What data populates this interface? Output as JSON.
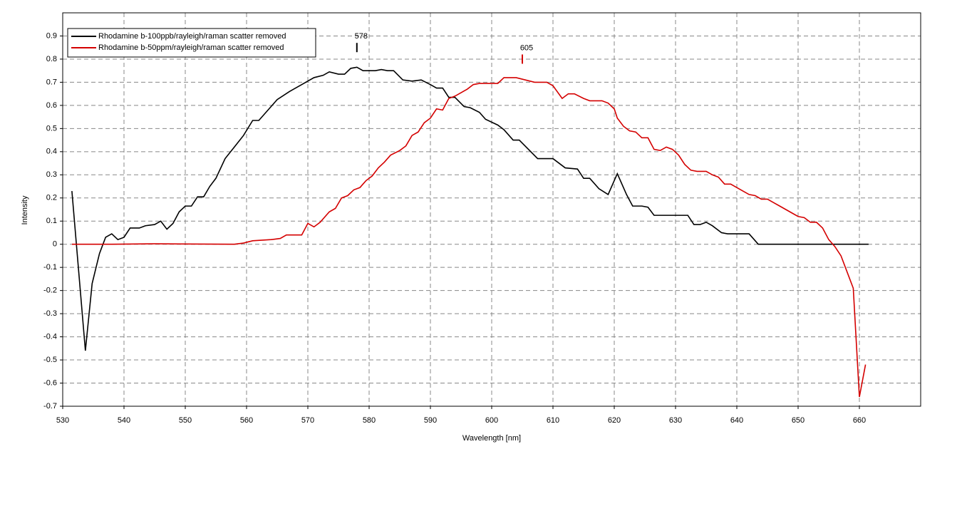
{
  "chart_data": {
    "type": "line",
    "xlabel": "Wavelength [nm]",
    "ylabel": "Intensity",
    "xlim": [
      530,
      670
    ],
    "ylim": [
      -0.7,
      1.0
    ],
    "xticks": [
      530,
      540,
      550,
      560,
      570,
      580,
      590,
      600,
      610,
      620,
      630,
      640,
      650,
      660
    ],
    "yticks": [
      -0.7,
      -0.6,
      -0.5,
      -0.4,
      -0.3,
      -0.2,
      -0.1,
      0,
      0.1,
      0.2,
      0.3,
      0.4,
      0.5,
      0.6,
      0.7,
      0.8,
      0.9
    ],
    "grid": true,
    "legend": "upper left",
    "series": [
      {
        "name": "Rhodamine b-100ppb/rayleigh/raman scatter removed",
        "color": "#000000",
        "x": [
          531.5,
          533.7,
          534.8,
          536,
          537,
          538,
          539,
          540,
          541,
          542.5,
          543.5,
          545,
          546,
          547,
          548,
          549,
          550,
          551,
          552,
          553,
          554,
          555,
          556.5,
          558,
          559.5,
          561,
          562,
          563.5,
          565,
          567,
          569,
          571,
          572.5,
          573.5,
          575,
          576,
          577,
          578,
          579,
          581,
          582,
          583,
          584,
          585.5,
          587,
          588.5,
          590,
          591,
          592,
          593,
          594,
          595.5,
          596.5,
          598,
          599,
          601,
          602,
          603.5,
          604.5,
          606,
          607.5,
          610,
          611,
          612,
          614,
          615,
          616,
          617.5,
          619,
          620.5,
          622,
          623,
          624.5,
          625.5,
          626.5,
          632,
          633,
          634,
          635,
          636,
          637.5,
          638.5,
          642,
          643.5,
          661.5
        ],
        "values": [
          0.23,
          -0.46,
          -0.17,
          -0.04,
          0.03,
          0.045,
          0.02,
          0.03,
          0.07,
          0.07,
          0.08,
          0.085,
          0.1,
          0.065,
          0.09,
          0.14,
          0.165,
          0.165,
          0.205,
          0.205,
          0.25,
          0.285,
          0.37,
          0.42,
          0.47,
          0.535,
          0.535,
          0.58,
          0.625,
          0.66,
          0.69,
          0.72,
          0.73,
          0.745,
          0.735,
          0.735,
          0.76,
          0.765,
          0.75,
          0.75,
          0.755,
          0.75,
          0.75,
          0.71,
          0.705,
          0.71,
          0.69,
          0.675,
          0.675,
          0.635,
          0.635,
          0.595,
          0.59,
          0.57,
          0.54,
          0.515,
          0.495,
          0.45,
          0.45,
          0.41,
          0.37,
          0.37,
          0.35,
          0.33,
          0.325,
          0.285,
          0.285,
          0.24,
          0.215,
          0.305,
          0.215,
          0.165,
          0.165,
          0.16,
          0.125,
          0.125,
          0.085,
          0.085,
          0.095,
          0.08,
          0.05,
          0.045,
          0.045,
          0,
          0
        ]
      },
      {
        "name": "Rhodamine b-50ppm/rayleigh/raman scatter removed",
        "color": "#d40000",
        "x": [
          531.5,
          538,
          545,
          558,
          559.5,
          561,
          564,
          565.5,
          566.5,
          569,
          570,
          571,
          572,
          573.5,
          574.5,
          575.5,
          576.5,
          577.5,
          578.5,
          579.5,
          580.5,
          581.5,
          582.5,
          583.5,
          585,
          586,
          587,
          588,
          589,
          590,
          591,
          592,
          593,
          594,
          595,
          596,
          597,
          598,
          601,
          602,
          604,
          605.5,
          607,
          609,
          610,
          611.5,
          612.5,
          613.5,
          615,
          616,
          618,
          619,
          620,
          620.5,
          621.5,
          622.5,
          623.5,
          624.5,
          625.5,
          626.5,
          627.5,
          628.5,
          629.5,
          630.5,
          631.5,
          632.5,
          633.5,
          635,
          636,
          637,
          638,
          639,
          640,
          641,
          642,
          643,
          644,
          645,
          646,
          647,
          648,
          649,
          650,
          651,
          652,
          653,
          654,
          655,
          656,
          657,
          658,
          659,
          660,
          661
        ],
        "values": [
          0,
          0,
          0.002,
          0,
          0.005,
          0.015,
          0.02,
          0.025,
          0.04,
          0.04,
          0.09,
          0.075,
          0.095,
          0.14,
          0.155,
          0.2,
          0.21,
          0.235,
          0.245,
          0.275,
          0.295,
          0.33,
          0.355,
          0.385,
          0.405,
          0.425,
          0.47,
          0.485,
          0.525,
          0.545,
          0.585,
          0.58,
          0.63,
          0.64,
          0.655,
          0.67,
          0.69,
          0.695,
          0.695,
          0.72,
          0.72,
          0.71,
          0.7,
          0.7,
          0.685,
          0.63,
          0.65,
          0.65,
          0.63,
          0.62,
          0.62,
          0.61,
          0.585,
          0.545,
          0.51,
          0.49,
          0.485,
          0.46,
          0.46,
          0.41,
          0.405,
          0.42,
          0.41,
          0.385,
          0.345,
          0.32,
          0.315,
          0.315,
          0.3,
          0.29,
          0.26,
          0.26,
          0.245,
          0.23,
          0.215,
          0.21,
          0.195,
          0.195,
          0.18,
          0.165,
          0.15,
          0.135,
          0.12,
          0.115,
          0.095,
          0.095,
          0.07,
          0.02,
          -0.01,
          -0.05,
          -0.12,
          -0.19,
          -0.66,
          -0.52
        ]
      }
    ],
    "annotations": [
      {
        "text": "578",
        "x": 578,
        "y": 0.83,
        "color": "#000000"
      },
      {
        "text": "605",
        "x": 605,
        "y": 0.78,
        "color": "#d40000"
      }
    ]
  }
}
